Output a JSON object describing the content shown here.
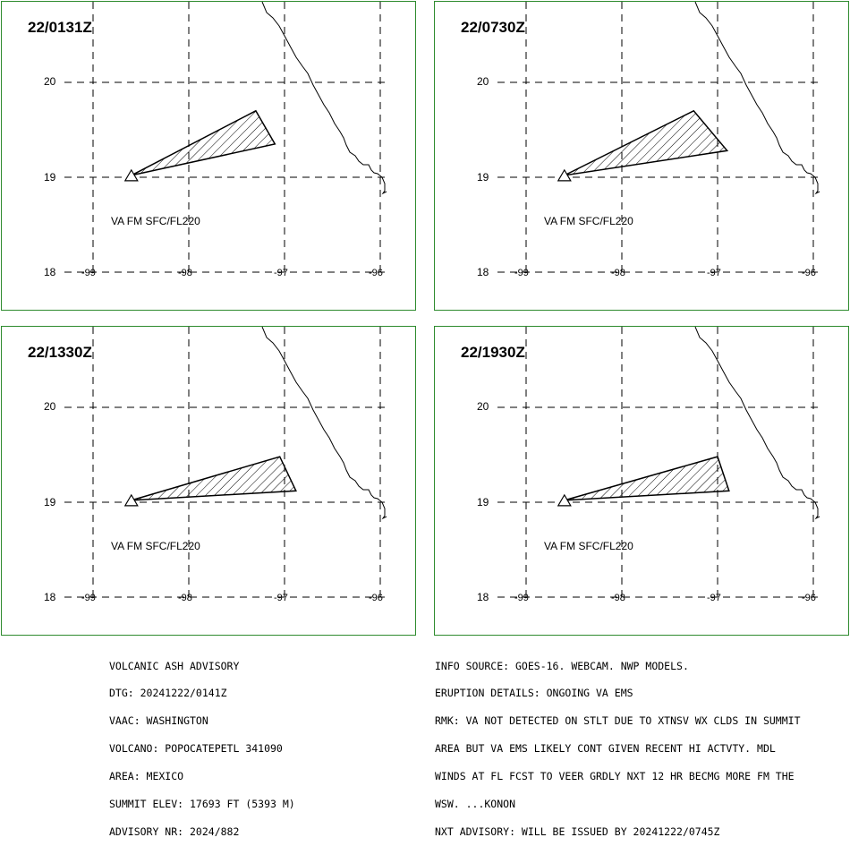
{
  "colors": {
    "frame": "#2e8b2e",
    "grid": "#000000",
    "plume_fill": "hatched"
  },
  "panels": [
    {
      "time": "22/0131Z",
      "label": "VA FM SFC/FL220",
      "plume_lonlat": [
        [
          -98.6,
          19.02
        ],
        [
          -97.3,
          19.7
        ],
        [
          -97.1,
          19.35
        ]
      ]
    },
    {
      "time": "22/0730Z",
      "label": "VA FM SFC/FL220",
      "plume_lonlat": [
        [
          -98.6,
          19.02
        ],
        [
          -97.25,
          19.7
        ],
        [
          -96.9,
          19.28
        ]
      ]
    },
    {
      "time": "22/1330Z",
      "label": "VA FM SFC/FL220",
      "plume_lonlat": [
        [
          -98.6,
          19.02
        ],
        [
          -97.05,
          19.48
        ],
        [
          -96.88,
          19.12
        ]
      ]
    },
    {
      "time": "22/1930Z",
      "label": "VA FM SFC/FL220",
      "plume_lonlat": [
        [
          -98.6,
          19.02
        ],
        [
          -97.0,
          19.48
        ],
        [
          -96.88,
          19.12
        ]
      ]
    }
  ],
  "axes": {
    "lat_labels": [
      "20",
      "19",
      "18"
    ],
    "lon_labels": [
      "-99",
      "-98",
      "-97",
      "-96"
    ]
  },
  "advisory_left": [
    "VOLCANIC ASH ADVISORY",
    "DTG: 20241222/0141Z",
    "VAAC: WASHINGTON",
    "VOLCANO: POPOCATEPETL 341090",
    "AREA: MEXICO",
    "SUMMIT ELEV: 17693 FT (5393 M)",
    "ADVISORY NR: 2024/882"
  ],
  "advisory_right": [
    "INFO SOURCE: GOES-16. WEBCAM. NWP MODELS.",
    "ERUPTION DETAILS: ONGOING VA EMS",
    "RMK: VA NOT DETECTED ON STLT DUE TO XTNSV WX CLDS IN SUMMIT",
    "AREA BUT VA EMS LIKELY CONT GIVEN RECENT HI ACTVTY. MDL",
    "WINDS AT FL FCST TO VEER GRDLY NXT 12 HR BECMG MORE FM THE",
    "WSW. ...KONON",
    "NXT ADVISORY: WILL BE ISSUED BY 20241222/0745Z"
  ]
}
